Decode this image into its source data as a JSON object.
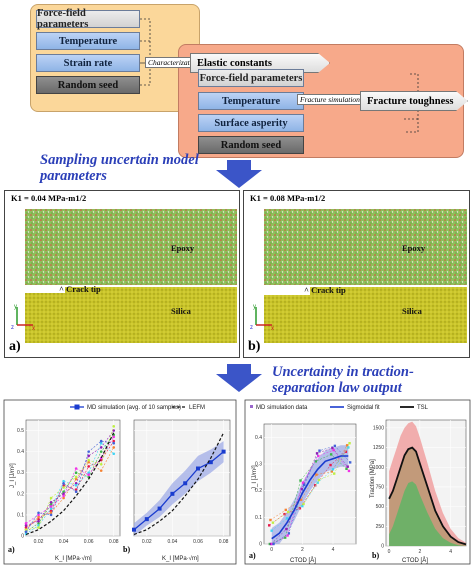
{
  "top_diagram": {
    "left_inputs": [
      "Force-field parameters",
      "Temperature",
      "Strain rate",
      "Random seed"
    ],
    "characterization_label": "Characterization",
    "right_inputs": [
      "Elastic constants",
      "Force-field parameters",
      "Temperature",
      "Surface asperity",
      "Random seed"
    ],
    "fracture_label": "Fracture simulation",
    "output": "Fracture toughness"
  },
  "heading1": "Sampling uncertain model parameters",
  "heading2_line1": "Uncertainty in traction-",
  "heading2_line2": "separation law output",
  "sim_panels": [
    {
      "letter": "a)",
      "title": "K1 = 0.04 MPa-m1/2",
      "epoxy": "Epoxy",
      "crack": "^ Crack tip",
      "silica": "Silica"
    },
    {
      "letter": "b)",
      "title": "K1 = 0.08 MPa-m1/2",
      "epoxy": "Epoxy",
      "crack": "^ Crack tip",
      "silica": "Silica"
    }
  ],
  "colors": {
    "heading_blue": "#2b3fb8",
    "arrow_blue": "#3b55c8",
    "epoxy_green": "#8fbf5a",
    "silica_yellow": "#c9c42a",
    "md_blue": "#1a3ccf",
    "band_blue": "#9aa6e6",
    "band_red": "#f0a0a0",
    "band_green": "#66b266"
  },
  "chart_data": [
    {
      "type": "line",
      "panel": "a)",
      "legend": [
        "MD simulation (avg. of 10 samples)",
        "LEFM"
      ],
      "xlabel": "K_I [MPa·√m]",
      "ylabel": "J_I [J/m²]",
      "xticks": [
        "0.02",
        "0.04",
        "0.06",
        "0.08"
      ],
      "yticks": [
        "0",
        "0.1",
        "0.2",
        "0.3",
        "0.4",
        "0.5"
      ],
      "xlim": [
        0.01,
        0.085
      ],
      "ylim": [
        0,
        0.55
      ],
      "x": [
        0.01,
        0.02,
        0.03,
        0.04,
        0.05,
        0.06,
        0.07,
        0.08
      ],
      "series": [
        {
          "name": "LEFM",
          "values": [
            0.007,
            0.03,
            0.07,
            0.12,
            0.19,
            0.27,
            0.37,
            0.49
          ]
        }
      ],
      "sample_series": [
        [
          0.04,
          0.08,
          0.12,
          0.24,
          0.22,
          0.33,
          0.36,
          0.45
        ],
        [
          0.02,
          0.06,
          0.15,
          0.21,
          0.3,
          0.28,
          0.4,
          0.48
        ],
        [
          0.03,
          0.09,
          0.11,
          0.18,
          0.27,
          0.35,
          0.31,
          0.42
        ],
        [
          0.05,
          0.07,
          0.16,
          0.2,
          0.25,
          0.38,
          0.42,
          0.5
        ],
        [
          0.01,
          0.05,
          0.13,
          0.26,
          0.24,
          0.3,
          0.44,
          0.39
        ],
        [
          0.06,
          0.1,
          0.14,
          0.19,
          0.32,
          0.29,
          0.37,
          0.47
        ],
        [
          0.03,
          0.04,
          0.18,
          0.23,
          0.28,
          0.36,
          0.34,
          0.52
        ],
        [
          0.02,
          0.11,
          0.1,
          0.25,
          0.21,
          0.4,
          0.45,
          0.44
        ]
      ]
    },
    {
      "type": "line",
      "panel": "b)",
      "xlabel": "K_I [MPa·√m]",
      "xticks": [
        "0.02",
        "0.04",
        "0.06",
        "0.08"
      ],
      "xlim": [
        0.01,
        0.085
      ],
      "ylim": [
        0,
        0.55
      ],
      "x": [
        0.01,
        0.02,
        0.03,
        0.04,
        0.05,
        0.06,
        0.07,
        0.08
      ],
      "series": [
        {
          "name": "MD simulation (avg. of 10 samples)",
          "values": [
            0.03,
            0.08,
            0.13,
            0.2,
            0.25,
            0.32,
            0.35,
            0.4
          ]
        },
        {
          "name": "LEFM",
          "values": [
            0.007,
            0.03,
            0.07,
            0.12,
            0.19,
            0.27,
            0.37,
            0.49
          ]
        }
      ],
      "band": {
        "lower": [
          0.0,
          0.05,
          0.09,
          0.15,
          0.2,
          0.26,
          0.3,
          0.35
        ],
        "upper": [
          0.06,
          0.11,
          0.17,
          0.25,
          0.31,
          0.38,
          0.41,
          0.45
        ]
      }
    },
    {
      "type": "scatter",
      "panel": "a)",
      "legend": [
        "MD simulation data",
        "Sigmoidal fit"
      ],
      "xlabel": "CTOD [Å]",
      "ylabel": "J_I [J/m²]",
      "xticks": [
        "0",
        "2",
        "4"
      ],
      "yticks": [
        "0",
        "0.1",
        "0.2",
        "0.3",
        "0.4"
      ],
      "xlim": [
        -0.5,
        5.5
      ],
      "ylim": [
        0,
        0.45
      ],
      "fit": {
        "x": [
          0,
          0.5,
          1,
          1.5,
          2,
          2.5,
          3,
          3.5,
          4,
          4.5,
          5
        ],
        "y": [
          0.02,
          0.04,
          0.08,
          0.13,
          0.19,
          0.24,
          0.28,
          0.31,
          0.32,
          0.33,
          0.33
        ]
      }
    },
    {
      "type": "area",
      "panel": "b)",
      "legend": [
        "TSL"
      ],
      "xlabel": "CTOD [Å]",
      "ylabel": "Traction [MPa]",
      "xticks": [
        "0",
        "2",
        "4"
      ],
      "yticks": [
        "0",
        "250",
        "500",
        "750",
        "1000",
        "1250",
        "1500"
      ],
      "xlim": [
        -0.2,
        5
      ],
      "ylim": [
        0,
        1600
      ],
      "x": [
        0,
        0.25,
        0.5,
        0.75,
        1,
        1.25,
        1.5,
        1.75,
        2,
        2.5,
        3,
        3.5,
        4,
        4.5,
        5
      ],
      "series": [
        {
          "name": "TSL",
          "values": [
            600,
            700,
            850,
            1000,
            1150,
            1230,
            1250,
            1200,
            1050,
            750,
            450,
            250,
            120,
            50,
            20
          ]
        }
      ],
      "band_upper": [
        950,
        1100,
        1250,
        1400,
        1500,
        1560,
        1580,
        1520,
        1380,
        1050,
        700,
        420,
        220,
        100,
        40
      ],
      "band_lower": [
        150,
        250,
        400,
        550,
        700,
        800,
        820,
        780,
        650,
        420,
        220,
        100,
        40,
        10,
        0
      ]
    }
  ]
}
